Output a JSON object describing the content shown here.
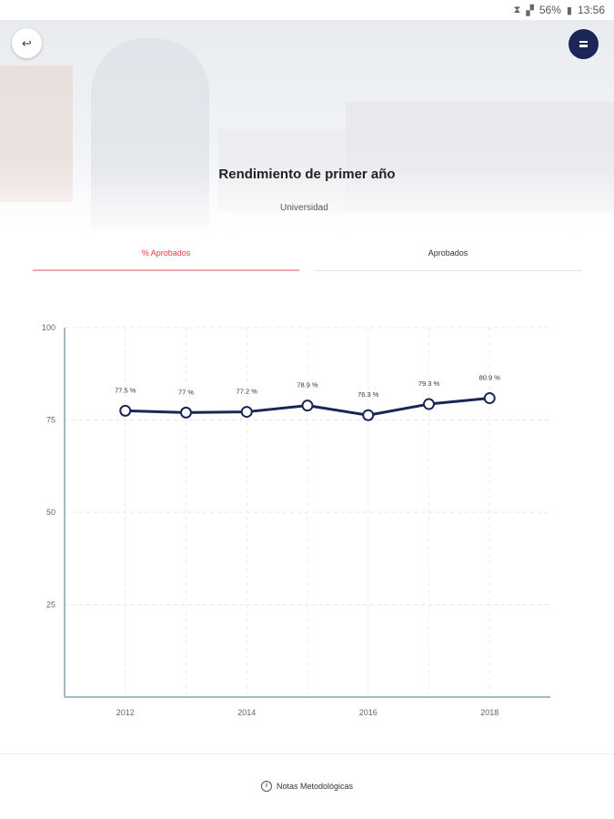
{
  "status_bar": {
    "battery": "56%",
    "time": "13:56"
  },
  "header": {
    "title": "Rendimiento de primer año",
    "subtitle": "Universidad"
  },
  "tabs": [
    {
      "label": "% Aprobados",
      "active": true
    },
    {
      "label": "Aprobados",
      "active": false
    }
  ],
  "footer": {
    "label": "Notas Metodológicas"
  },
  "colors": {
    "accent": "#e63946",
    "line": "#1b2556"
  },
  "chart_data": {
    "type": "line",
    "title": "",
    "xlabel": "",
    "ylabel": "",
    "ylim": [
      0,
      100
    ],
    "yticks": [
      25,
      50,
      75,
      100
    ],
    "xlim": [
      2011,
      2019
    ],
    "xticks": [
      2012,
      2014,
      2016,
      2018
    ],
    "grid": true,
    "series": [
      {
        "x": [
          2012,
          2013,
          2014,
          2015,
          2016,
          2017,
          2018
        ],
        "values": [
          77.5,
          77,
          77.2,
          78.9,
          76.3,
          79.3,
          80.9
        ],
        "labels": [
          "77.5 %",
          "77 %",
          "77.2 %",
          "78.9 %",
          "76.3 %",
          "79.3 %",
          "80.9 %"
        ]
      }
    ]
  }
}
